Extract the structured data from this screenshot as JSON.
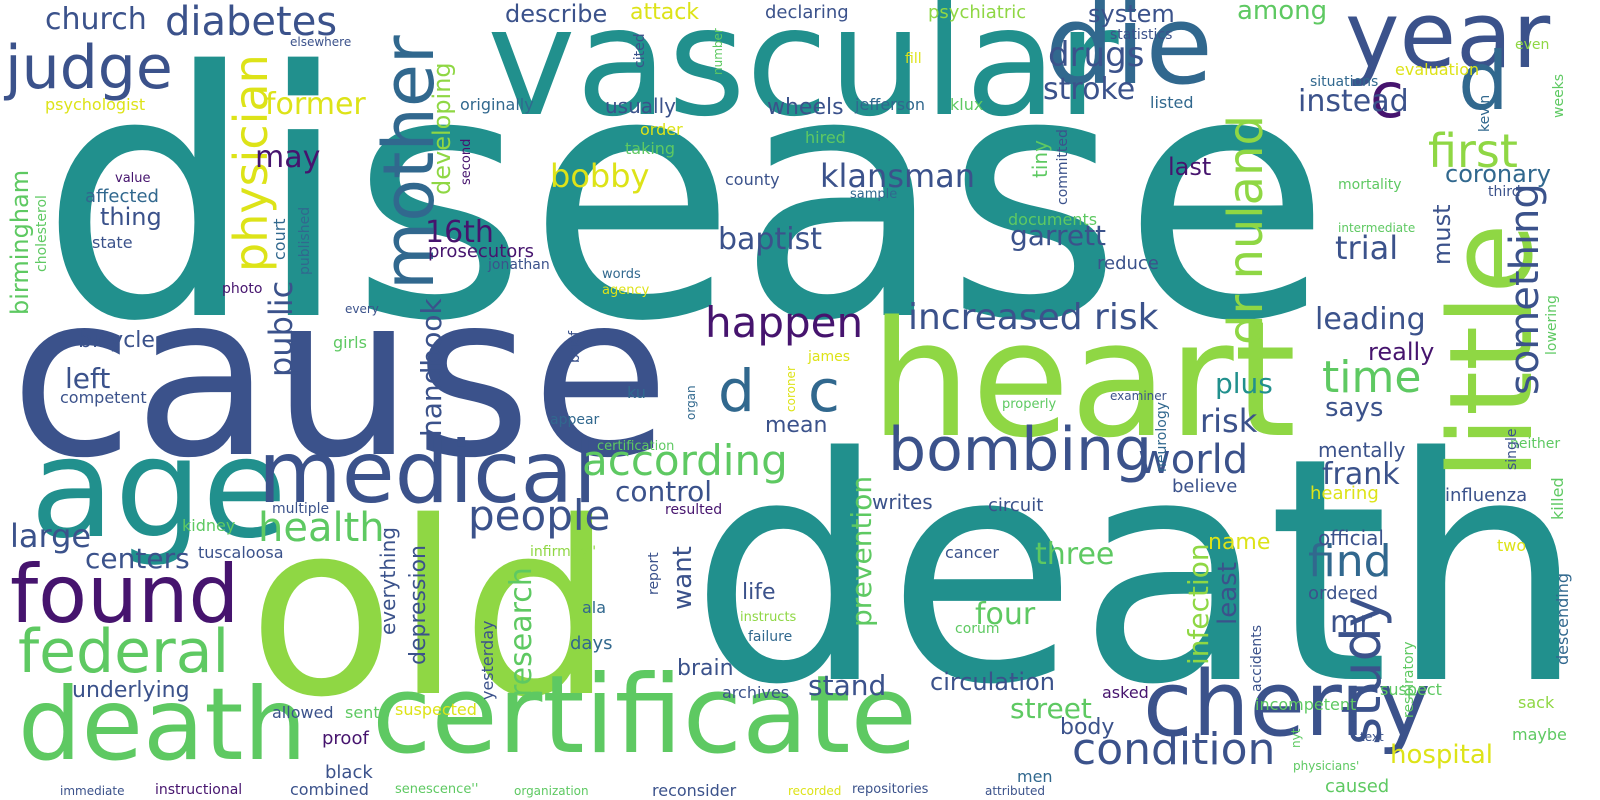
{
  "palette": {
    "navy": "#3b528b",
    "purple": "#46146e",
    "teal": "#21908d",
    "green": "#5ec962",
    "lime": "#8fd744",
    "yellow": "#dde318",
    "blue": "#31688e"
  },
  "words": {
    "disease": "disease",
    "death": "death",
    "cause": "cause",
    "heart": "heart",
    "old": "old",
    "vascular": "vascular",
    "age": "age",
    "certificate": "certificate",
    "death2": "death",
    "die": "die",
    "year": "year",
    "d1": "d",
    "c1": "c",
    "little": "little",
    "cherry": "cherry",
    "mother": "mother",
    "medical": "medical",
    "found": "found",
    "federal": "federal",
    "judge": "judge",
    "bombing": "bombing",
    "dc_d": "d",
    "dc_c": "c",
    "dr_nuland": "dr nuland",
    "study": "study",
    "condition": "condition",
    "physician": "physician",
    "diabetes": "diabetes",
    "according": "according",
    "people": "people",
    "happen": "happen",
    "increased_risk": "increased risk",
    "world": "world",
    "first": "first",
    "something": "something",
    "health": "health",
    "time": "time",
    "find": "find",
    "church": "church",
    "klansman": "klansman",
    "garrett": "garrett",
    "baptist": "baptist",
    "trial": "trial",
    "drugs": "drugs",
    "stroke": "stroke",
    "instead": "instead",
    "former": "former",
    "may": "may",
    "bobby": "bobby",
    "sixteenth": "16th",
    "prosecutors": "prosecutors",
    "developing": "developing",
    "handbook": "handbook",
    "public": "public",
    "large": "large",
    "centers": "centers",
    "control": "control",
    "research": "research",
    "want": "want",
    "prevention": "prevention",
    "three": "three",
    "four": "four",
    "street": "street",
    "stand": "stand",
    "circulation": "circulation",
    "hospital": "hospital",
    "infection": "infection",
    "least": "least",
    "mr": "mr",
    "frank": "frank",
    "risk": "risk",
    "plus": "plus",
    "says": "says",
    "leading": "leading",
    "really": "really",
    "must": "must",
    "coronary": "coronary",
    "last": "last",
    "left": "left",
    "bicycle": "bicycle",
    "birmingham": "birmingham",
    "thing": "thing",
    "underlying": "underlying",
    "depression": "depression",
    "everything": "everything",
    "life": "life",
    "writes": "writes",
    "brain": "brain",
    "body": "body",
    "mean": "mean",
    "name": "name",
    "hearing": "hearing",
    "influenza": "influenza",
    "official": "official",
    "mentally": "mentally",
    "system": "system",
    "describe": "describe",
    "attack": "attack",
    "declaring": "declaring",
    "psychiatric": "psychiatric",
    "among": "among",
    "statistics": "statistics",
    "elsewhere": "elsewhere",
    "psychologist": "psychologist",
    "originally": "originally",
    "usually": "usually",
    "wheels": "wheels",
    "jefferson": "jefferson",
    "klux": "klux",
    "listed": "listed",
    "situations": "situations",
    "evaluation": "evaluation",
    "even": "even",
    "fill": "fill",
    "number": "number",
    "cited": "cited",
    "order": "order",
    "taking": "taking",
    "hired": "hired",
    "county": "county",
    "tiny": "tiny",
    "committed": "committed",
    "mortality": "mortality",
    "sample": "sample",
    "second": "second",
    "affected": "affected",
    "value": "value",
    "cholesterol": "cholesterol",
    "state": "state",
    "court": "court",
    "published": "published",
    "jonathan": "jonathan",
    "documents": "documents",
    "reduce": "reduce",
    "intermediate": "intermediate",
    "third": "third",
    "weeks": "weeks",
    "kevin": "kevin",
    "lowering": "lowering",
    "words": "words",
    "agency": "agency",
    "photo": "photo",
    "every": "every",
    "girls": "girls",
    "brief": "brief",
    "james": "james",
    "competent": "competent",
    "ku": "ku",
    "organ": "organ",
    "coroner": "coroner",
    "properly": "properly",
    "examiner": "examiner",
    "neurology": "neurology",
    "appear": "appear",
    "certification": "certification",
    "neither": "neither",
    "single": "single",
    "killed": "killed",
    "descending": "descending",
    "multiple": "multiple",
    "resulted": "resulted",
    "believe": "believe",
    "circuit": "circuit",
    "kidney": "kidney",
    "tuscaloosa": "tuscaloosa",
    "infirmity": "infirmity''",
    "cancer": "cancer",
    "two": "two",
    "ala": "ala",
    "instructs": "instructs",
    "failure": "failure",
    "corum": "corum",
    "ordered": "ordered",
    "days": "days",
    "yesterday": "yesterday",
    "report": "report",
    "accidents": "accidents",
    "respiratory": "respiratory",
    "archives": "archives",
    "asked": "asked",
    "incompetent": "incompetent",
    "suspect": "suspect",
    "sack": "sack",
    "maybe": "maybe",
    "allowed": "allowed",
    "sent": "sent",
    "suspected": "suspected",
    "proof": "proof",
    "black": "black",
    "combined": "combined",
    "men": "men",
    "nyt": "nyt",
    "text": "text",
    "physicians": "physicians'",
    "caused": "caused",
    "immediate": "immediate",
    "instructional": "instructional",
    "senescence": "senescence''",
    "organization": "organization",
    "reconsider": "reconsider",
    "recorded": "recorded",
    "repositories": "repositories",
    "attributed": "attributed"
  }
}
